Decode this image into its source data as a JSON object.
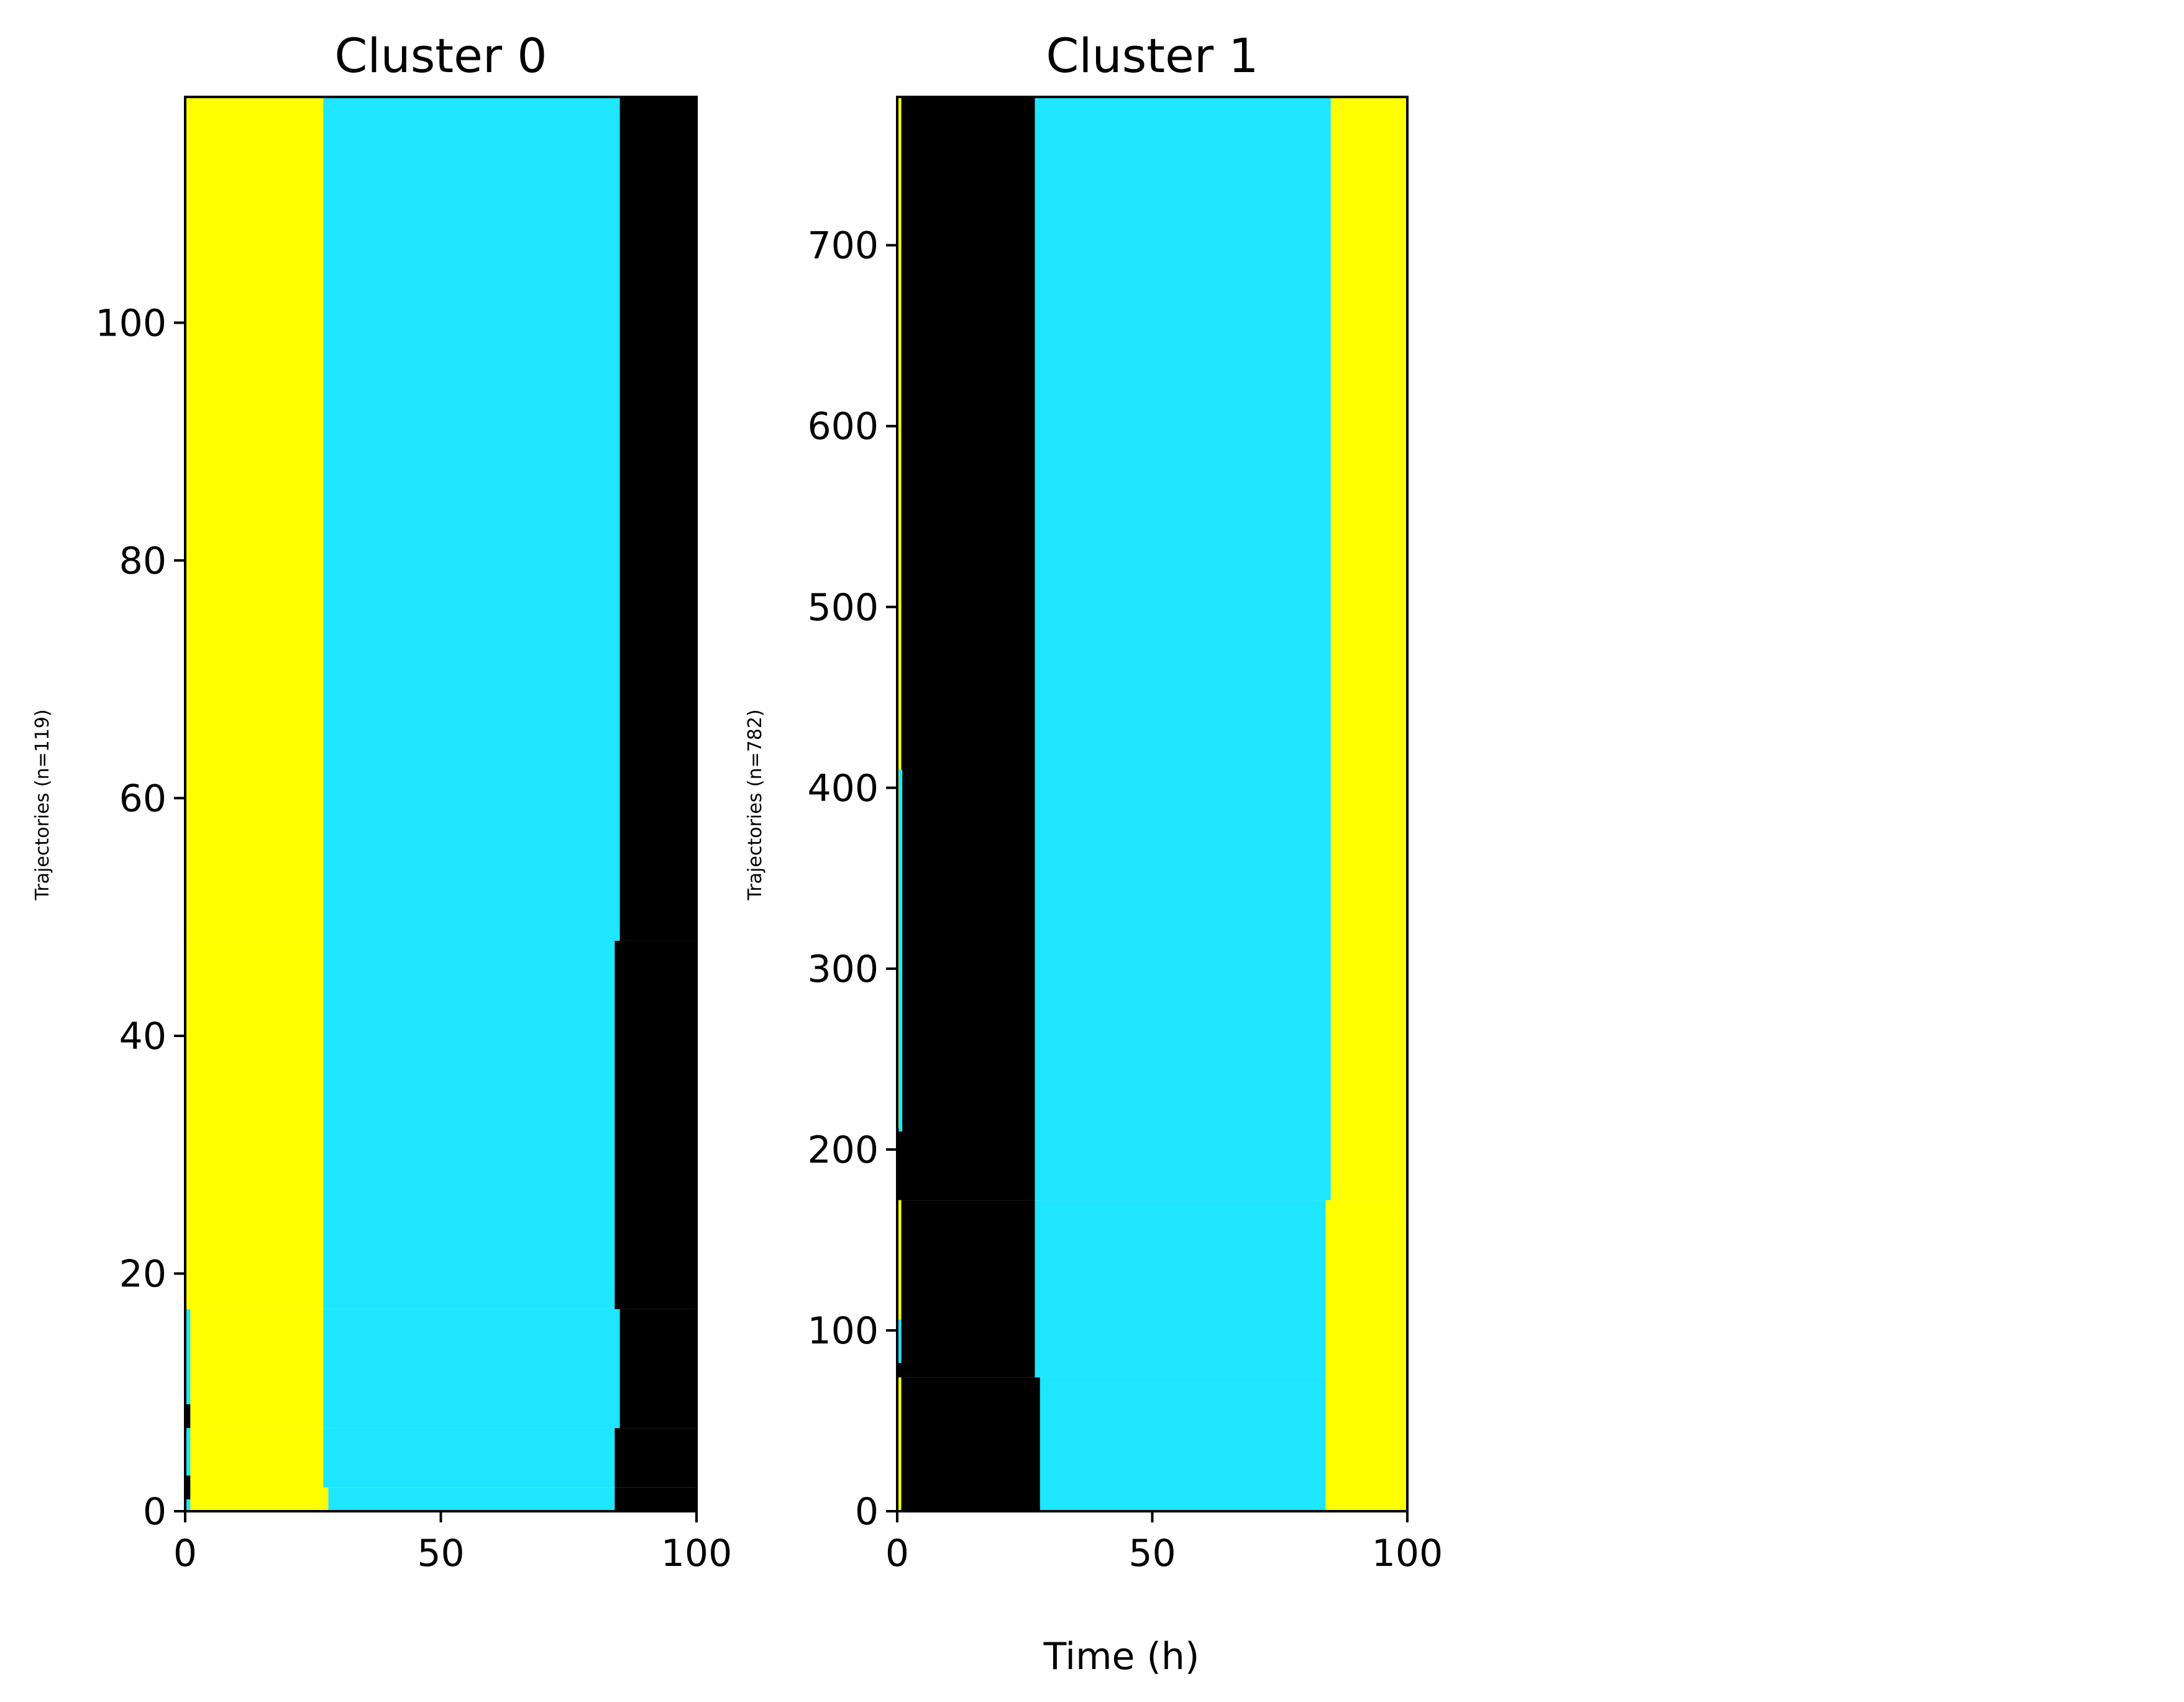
{
  "colors": {
    "yellow": "#ffff00",
    "cyan": "#1ee6ff",
    "black": "#000000",
    "frame": "#000000",
    "background": "#ffffff"
  },
  "shared": {
    "xlabel": "Time (h)"
  },
  "chart_data": [
    {
      "type": "heatmap",
      "title": "Cluster 0",
      "ylabel": "Trajectories (n=119)",
      "xlim": [
        0,
        100
      ],
      "ylim": [
        0,
        119
      ],
      "xticks": [
        0,
        50,
        100
      ],
      "xtick_labels": [
        "0",
        "50",
        "100"
      ],
      "yticks": [
        0,
        20,
        40,
        60,
        80,
        100
      ],
      "ytick_labels": [
        "0",
        "20",
        "40",
        "60",
        "80",
        "100"
      ],
      "segments": [
        {
          "y0": 0,
          "y1": 2,
          "x0": 0,
          "x1": 28,
          "color": "yellow"
        },
        {
          "y0": 0,
          "y1": 2,
          "x0": 28,
          "x1": 84,
          "color": "cyan"
        },
        {
          "y0": 0,
          "y1": 2,
          "x0": 84,
          "x1": 100,
          "color": "black"
        },
        {
          "y0": 2,
          "y1": 7,
          "x0": 0,
          "x1": 27,
          "color": "yellow"
        },
        {
          "y0": 2,
          "y1": 7,
          "x0": 27,
          "x1": 84,
          "color": "cyan"
        },
        {
          "y0": 2,
          "y1": 7,
          "x0": 84,
          "x1": 100,
          "color": "black"
        },
        {
          "y0": 7,
          "y1": 17,
          "x0": 0,
          "x1": 27,
          "color": "yellow"
        },
        {
          "y0": 7,
          "y1": 17,
          "x0": 27,
          "x1": 85,
          "color": "cyan"
        },
        {
          "y0": 7,
          "y1": 17,
          "x0": 85,
          "x1": 100,
          "color": "black"
        },
        {
          "y0": 17,
          "y1": 48,
          "x0": 0,
          "x1": 27,
          "color": "yellow"
        },
        {
          "y0": 17,
          "y1": 48,
          "x0": 27,
          "x1": 84,
          "color": "cyan"
        },
        {
          "y0": 17,
          "y1": 48,
          "x0": 84,
          "x1": 100,
          "color": "black"
        },
        {
          "y0": 48,
          "y1": 119,
          "x0": 0,
          "x1": 27,
          "color": "yellow"
        },
        {
          "y0": 48,
          "y1": 119,
          "x0": 27,
          "x1": 85,
          "color": "cyan"
        },
        {
          "y0": 48,
          "y1": 119,
          "x0": 85,
          "x1": 100,
          "color": "black"
        },
        {
          "y0": 0,
          "y1": 17,
          "x0": 0,
          "x1": 1,
          "color": "cyan"
        },
        {
          "y0": 1,
          "y1": 3,
          "x0": 0,
          "x1": 1,
          "color": "black"
        },
        {
          "y0": 7,
          "y1": 9,
          "x0": 0,
          "x1": 1,
          "color": "black"
        }
      ]
    },
    {
      "type": "heatmap",
      "title": "Cluster 1",
      "ylabel": "Trajectories (n=782)",
      "xlim": [
        0,
        100
      ],
      "ylim": [
        0,
        782
      ],
      "xticks": [
        0,
        50,
        100
      ],
      "xtick_labels": [
        "0",
        "50",
        "100"
      ],
      "yticks": [
        0,
        100,
        200,
        300,
        400,
        500,
        600,
        700
      ],
      "ytick_labels": [
        "0",
        "100",
        "200",
        "300",
        "400",
        "500",
        "600",
        "700"
      ],
      "segments": [
        {
          "y0": 0,
          "y1": 74,
          "x0": 0,
          "x1": 28,
          "color": "black"
        },
        {
          "y0": 0,
          "y1": 74,
          "x0": 28,
          "x1": 84,
          "color": "cyan"
        },
        {
          "y0": 0,
          "y1": 74,
          "x0": 84,
          "x1": 100,
          "color": "yellow"
        },
        {
          "y0": 74,
          "y1": 172,
          "x0": 0,
          "x1": 27,
          "color": "black"
        },
        {
          "y0": 74,
          "y1": 172,
          "x0": 27,
          "x1": 84,
          "color": "cyan"
        },
        {
          "y0": 74,
          "y1": 172,
          "x0": 84,
          "x1": 100,
          "color": "yellow"
        },
        {
          "y0": 172,
          "y1": 782,
          "x0": 0,
          "x1": 27,
          "color": "black"
        },
        {
          "y0": 172,
          "y1": 782,
          "x0": 27,
          "x1": 85,
          "color": "cyan"
        },
        {
          "y0": 172,
          "y1": 782,
          "x0": 85,
          "x1": 100,
          "color": "yellow"
        },
        {
          "y0": 212,
          "y1": 782,
          "x0": 0,
          "x1": 0.8,
          "color": "yellow"
        },
        {
          "y0": 0,
          "y1": 74,
          "x0": 0,
          "x1": 0.8,
          "color": "yellow"
        },
        {
          "y0": 82,
          "y1": 172,
          "x0": 0,
          "x1": 0.8,
          "color": "yellow"
        },
        {
          "y0": 210,
          "y1": 410,
          "x0": 0.3,
          "x1": 1,
          "color": "cyan"
        },
        {
          "y0": 82,
          "y1": 106,
          "x0": 0,
          "x1": 0.8,
          "color": "cyan"
        }
      ]
    }
  ]
}
